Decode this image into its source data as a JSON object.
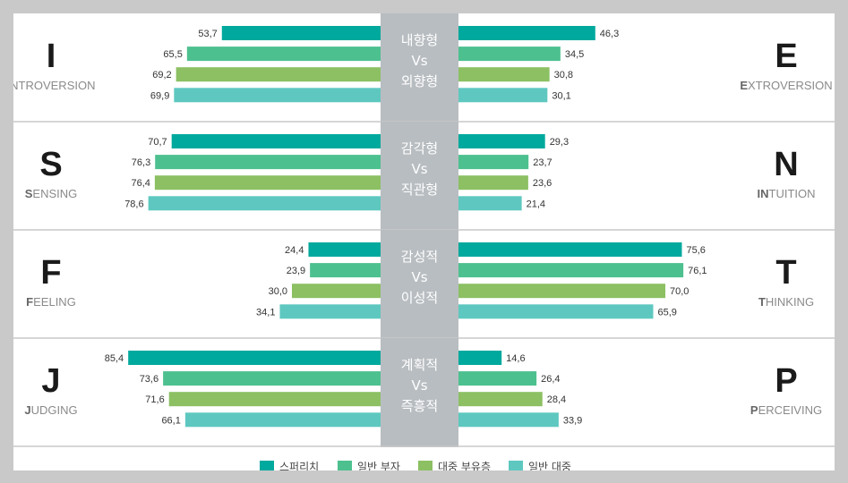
{
  "chart_data": {
    "type": "bar",
    "orientation": "horizontal-diverging",
    "series": [
      {
        "name": "스퍼리치",
        "color": "#00a99d"
      },
      {
        "name": "일반 부자",
        "color": "#4dc08f"
      },
      {
        "name": "대중 부유층",
        "color": "#8cc063"
      },
      {
        "name": "일반 대중",
        "color": "#5ec8c0"
      }
    ],
    "dimensions": [
      {
        "left_letter": "I",
        "left_word_rest": "NTROVERSION",
        "right_letter": "E",
        "right_word_rest": "XTROVERSION",
        "center": [
          "내향형",
          "Vs",
          "외향형"
        ],
        "left_values": [
          53.7,
          65.5,
          69.2,
          69.9
        ],
        "right_values": [
          46.3,
          34.5,
          30.8,
          30.1
        ],
        "left_labels": [
          "53,7",
          "65,5",
          "69,2",
          "69,9"
        ],
        "right_labels": [
          "46,3",
          "34,5",
          "30,8",
          "30,1"
        ]
      },
      {
        "left_letter": "S",
        "left_word_rest": "ENSING",
        "right_letter": "N",
        "right_word_rest": "TUITION",
        "right_word_prefix": "I",
        "center": [
          "감각형",
          "Vs",
          "직관형"
        ],
        "left_values": [
          70.7,
          76.3,
          76.4,
          78.6
        ],
        "right_values": [
          29.3,
          23.7,
          23.6,
          21.4
        ],
        "left_labels": [
          "70,7",
          "76,3",
          "76,4",
          "78,6"
        ],
        "right_labels": [
          "29,3",
          "23,7",
          "23,6",
          "21,4"
        ]
      },
      {
        "left_letter": "F",
        "left_word_rest": "EELING",
        "right_letter": "T",
        "right_word_rest": "HINKING",
        "center": [
          "감성적",
          "Vs",
          "이성적"
        ],
        "left_values": [
          24.4,
          23.9,
          30.0,
          34.1
        ],
        "right_values": [
          75.6,
          76.1,
          70.0,
          65.9
        ],
        "left_labels": [
          "24,4",
          "23,9",
          "30,0",
          "34,1"
        ],
        "right_labels": [
          "75,6",
          "76,1",
          "70,0",
          "65,9"
        ]
      },
      {
        "left_letter": "J",
        "left_word_rest": "UDGING",
        "right_letter": "P",
        "right_word_rest": "ERCEIVING",
        "center": [
          "계획적",
          "Vs",
          "즉흥적"
        ],
        "left_values": [
          85.4,
          73.6,
          71.6,
          66.1
        ],
        "right_values": [
          14.6,
          26.4,
          28.4,
          33.9
        ],
        "left_labels": [
          "85,4",
          "73,6",
          "71,6",
          "66,1"
        ],
        "right_labels": [
          "14,6",
          "26,4",
          "28,4",
          "33,9"
        ]
      }
    ],
    "legend_position": "bottom-center"
  }
}
